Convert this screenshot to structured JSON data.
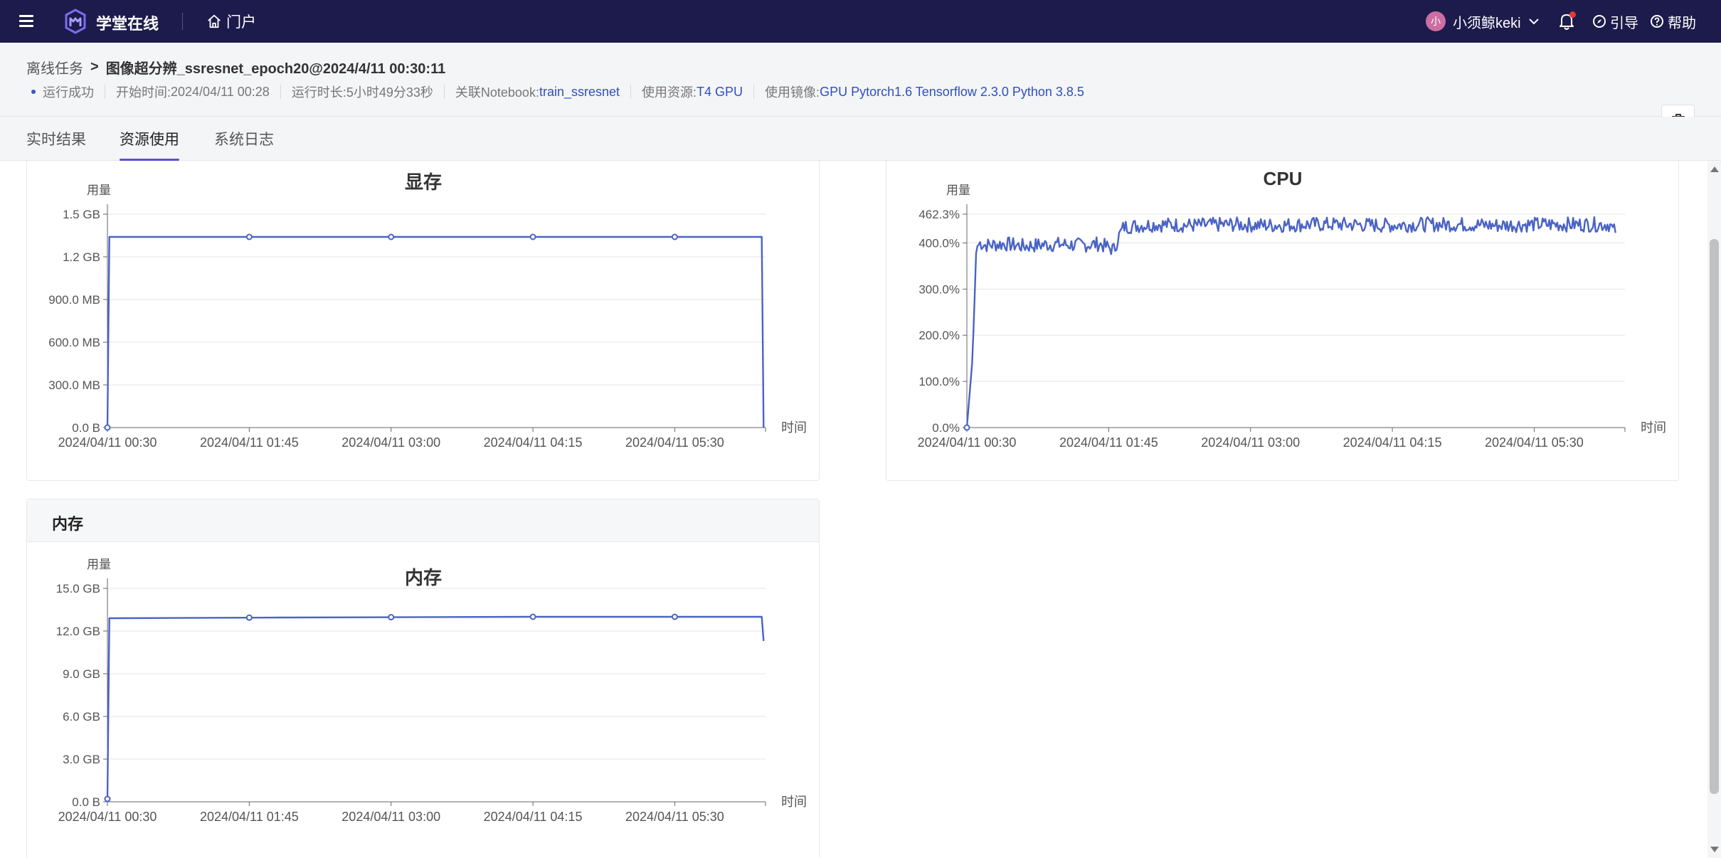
{
  "topbar": {
    "brand": "学堂在线",
    "portal": "门户",
    "avatar_char": "小",
    "user_name": "小须鲸keki",
    "guide": "引导",
    "help": "帮助"
  },
  "header": {
    "parent": "离线任务",
    "sep": ">",
    "title": "图像超分辨_ssresnet_epoch20@2024/4/11 00:30:11",
    "status": "运行成功",
    "start_label": "开始时间: ",
    "start_value": "2024/04/11 00:28",
    "duration_label": "运行时长: ",
    "duration_value": "5小时49分33秒",
    "notebook_label": "关联Notebook: ",
    "notebook_value": "train_ssresnet",
    "resource_label": "使用资源: ",
    "resource_value": "T4 GPU",
    "image_label": "使用镜像: ",
    "image_value": "GPU Pytorch1.6 Tensorflow 2.3.0 Python 3.8.5"
  },
  "tabs": [
    "实时结果",
    "资源使用",
    "系统日志"
  ],
  "active_tab": 1,
  "colors": {
    "line": "#4a63c4",
    "accent": "#5b4fd1",
    "topbar": "#1d1b4b"
  },
  "memory_card": {
    "header": "内存"
  },
  "chart_data": [
    {
      "id": "gpu-mem",
      "type": "line",
      "title": "显存",
      "ylabel": "用量",
      "xlabel": "时间",
      "y_ticks": [
        "0.0 B",
        "300.0 MB",
        "600.0 MB",
        "900.0 MB",
        "1.2 GB",
        "1.5 GB"
      ],
      "y_tick_values": [
        0,
        300,
        600,
        900,
        1200,
        1500
      ],
      "ylim": [
        0,
        1500
      ],
      "x_ticks": [
        "2024/04/11 00:30",
        "2024/04/11 01:45",
        "2024/04/11 03:00",
        "2024/04/11 04:15",
        "2024/04/11 05:30"
      ],
      "x_tick_minutes": [
        30,
        105,
        180,
        255,
        330
      ],
      "xlim_minutes": [
        30,
        378
      ],
      "markers_minutes": [
        30,
        105,
        180,
        255,
        330
      ],
      "series": [
        {
          "points": [
            [
              30,
              0
            ],
            [
              31,
              1340
            ],
            [
              376,
              1340
            ],
            [
              377,
              0
            ]
          ]
        }
      ]
    },
    {
      "id": "cpu",
      "type": "line",
      "title": "CPU",
      "ylabel": "用量",
      "xlabel": "时间",
      "y_ticks": [
        "0.0%",
        "100.0%",
        "200.0%",
        "300.0%",
        "400.0%",
        "462.3%"
      ],
      "y_tick_values": [
        0,
        100,
        200,
        300,
        400,
        462.3
      ],
      "ylim": [
        0,
        462.3
      ],
      "x_ticks": [
        "2024/04/11 00:30",
        "2024/04/11 01:45",
        "2024/04/11 03:00",
        "2024/04/11 04:15",
        "2024/04/11 05:30"
      ],
      "x_tick_minutes": [
        30,
        105,
        180,
        255,
        330
      ],
      "xlim_minutes": [
        30,
        378
      ],
      "markers_minutes": [
        30
      ],
      "series": [
        {
          "points": [
            [
              30,
              0
            ],
            [
              33,
              150
            ],
            [
              35,
              390
            ],
            [
              37,
              400
            ],
            [
              40,
              395
            ],
            [
              50,
              398
            ],
            [
              60,
              393
            ],
            [
              70,
              396
            ],
            [
              80,
              397
            ],
            [
              90,
              395
            ],
            [
              100,
              398
            ],
            [
              108,
              385
            ],
            [
              110,
              412
            ],
            [
              113,
              435
            ],
            [
              130,
              440
            ],
            [
              150,
              438
            ],
            [
              170,
              440
            ],
            [
              190,
              438
            ],
            [
              210,
              440
            ],
            [
              230,
              440
            ],
            [
              250,
              438
            ],
            [
              270,
              440
            ],
            [
              290,
              440
            ],
            [
              310,
              438
            ],
            [
              330,
              440
            ],
            [
              350,
              440
            ],
            [
              370,
              440
            ],
            [
              372,
              425
            ],
            [
              373,
              428
            ]
          ]
        }
      ]
    },
    {
      "id": "memory",
      "type": "line",
      "title": "内存",
      "ylabel": "用量",
      "xlabel": "时间",
      "y_ticks": [
        "0.0 B",
        "3.0 GB",
        "6.0 GB",
        "9.0 GB",
        "12.0 GB",
        "15.0 GB"
      ],
      "y_tick_values": [
        0,
        3,
        6,
        9,
        12,
        15
      ],
      "ylim": [
        0,
        15
      ],
      "x_ticks": [
        "2024/04/11 00:30",
        "2024/04/11 01:45",
        "2024/04/11 03:00",
        "2024/04/11 04:15",
        "2024/04/11 05:30"
      ],
      "x_tick_minutes": [
        30,
        105,
        180,
        255,
        330
      ],
      "xlim_minutes": [
        30,
        378
      ],
      "markers_minutes": [
        30,
        105,
        180,
        255,
        330
      ],
      "series": [
        {
          "points": [
            [
              30,
              0.2
            ],
            [
              31,
              12.9
            ],
            [
              120,
              12.95
            ],
            [
              250,
              13.0
            ],
            [
              376,
              13.0
            ],
            [
              377,
              11.3
            ]
          ]
        }
      ]
    }
  ]
}
